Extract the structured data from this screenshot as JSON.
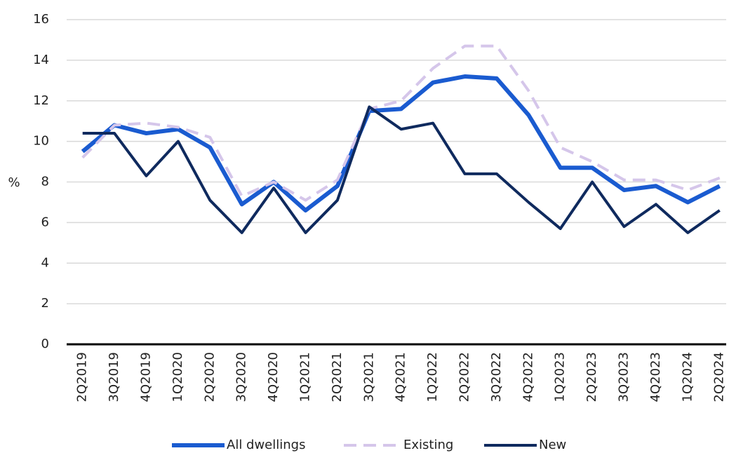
{
  "chart_data": {
    "type": "line",
    "y_label": "%",
    "categories": [
      "2Q2019",
      "3Q2019",
      "4Q2019",
      "1Q2020",
      "2Q2020",
      "3Q2020",
      "4Q2020",
      "1Q2021",
      "2Q2021",
      "3Q2021",
      "4Q2021",
      "1Q2022",
      "2Q2022",
      "3Q2022",
      "4Q2022",
      "1Q2023",
      "2Q2023",
      "3Q2023",
      "4Q2023",
      "1Q2024",
      "2Q2024"
    ],
    "series": [
      {
        "name": "All dwellings",
        "color": "#1a5bd0",
        "dashed": false,
        "width": 6,
        "values": [
          9.5,
          10.8,
          10.4,
          10.6,
          9.7,
          6.9,
          8.0,
          6.6,
          7.8,
          11.5,
          11.6,
          12.9,
          13.2,
          13.1,
          11.3,
          8.7,
          8.7,
          7.6,
          7.8,
          7.0,
          7.8
        ]
      },
      {
        "name": "Existing",
        "color": "#d5c6ea",
        "dashed": true,
        "width": 4,
        "values": [
          9.2,
          10.8,
          10.9,
          10.7,
          10.2,
          7.3,
          8.0,
          7.1,
          8.1,
          11.6,
          12.0,
          13.6,
          14.7,
          14.7,
          12.5,
          9.7,
          9.0,
          8.1,
          8.1,
          7.6,
          8.2
        ]
      },
      {
        "name": "New",
        "color": "#0f2a5e",
        "dashed": false,
        "width": 4,
        "values": [
          10.4,
          10.4,
          8.3,
          10.0,
          7.1,
          5.5,
          7.7,
          5.5,
          7.1,
          11.7,
          10.6,
          10.9,
          8.4,
          8.4,
          7.0,
          5.7,
          8.0,
          5.8,
          6.9,
          5.5,
          6.6
        ]
      }
    ],
    "ylim": [
      0,
      16
    ],
    "yticks": [
      0,
      2,
      4,
      6,
      8,
      10,
      12,
      14,
      16
    ],
    "grid": true,
    "legend": "bottom"
  }
}
